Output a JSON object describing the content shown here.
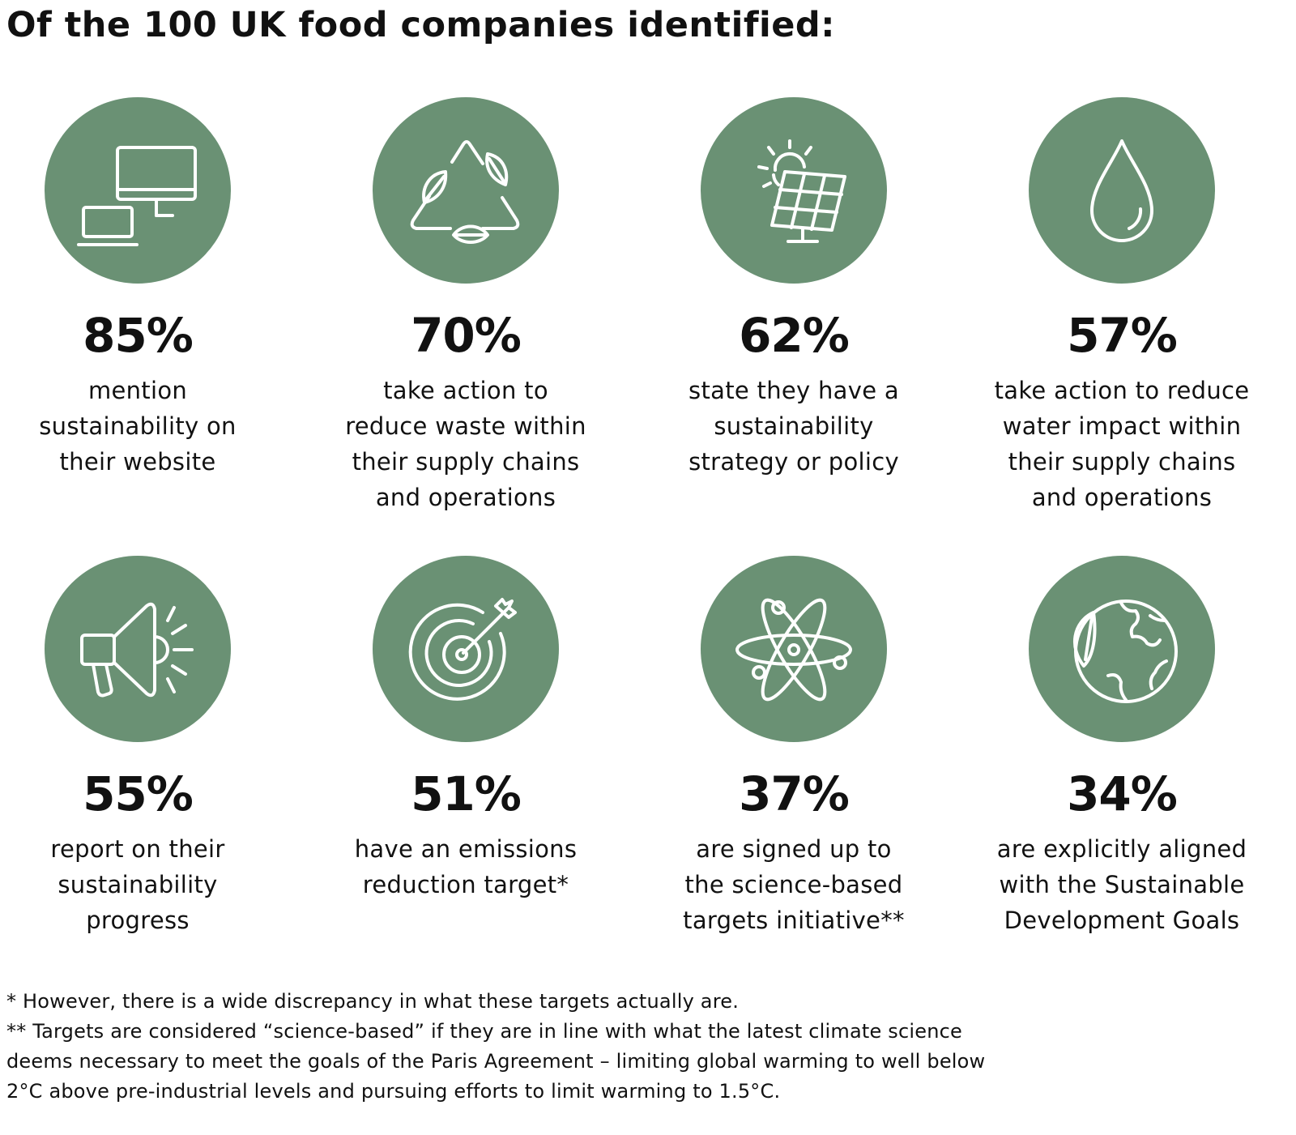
{
  "title": "Of the 100 UK food companies identified:",
  "colors": {
    "circle": "#6a9174",
    "icon_stroke": "#ffffff",
    "text": "#111111"
  },
  "stats": [
    {
      "icon": "computer-laptop-icon",
      "percent": "85%",
      "lines": [
        "mention",
        "sustainability on",
        "their website"
      ]
    },
    {
      "icon": "recycle-leaves-icon",
      "percent": "70%",
      "lines": [
        "take action to",
        "reduce waste within",
        "their supply chains",
        "and operations"
      ]
    },
    {
      "icon": "solar-panel-icon",
      "percent": "62%",
      "lines": [
        "state they have a",
        "sustainability",
        "strategy or policy"
      ]
    },
    {
      "icon": "water-drop-icon",
      "percent": "57%",
      "lines": [
        "take action to reduce",
        "water impact within",
        "their supply chains",
        "and operations"
      ]
    },
    {
      "icon": "megaphone-icon",
      "percent": "55%",
      "lines": [
        "report on their",
        "sustainability",
        "progress"
      ]
    },
    {
      "icon": "target-icon",
      "percent": "51%",
      "lines": [
        "have an emissions",
        "reduction target*"
      ]
    },
    {
      "icon": "atom-icon",
      "percent": "37%",
      "lines": [
        "are signed up to",
        "the science-based",
        "targets initiative**"
      ]
    },
    {
      "icon": "globe-leaf-icon",
      "percent": "34%",
      "lines": [
        "are explicitly aligned",
        "with the Sustainable",
        "Development Goals"
      ]
    }
  ],
  "footnotes": [
    "* However, there is a wide discrepancy in what these targets actually are.",
    "** Targets are considered “science-based” if they are in line with what the latest climate science",
    "deems necessary to meet the goals of the Paris Agreement – limiting global warming to well below",
    "2°C above pre-industrial levels and pursuing efforts to limit warming to 1.5°C."
  ]
}
